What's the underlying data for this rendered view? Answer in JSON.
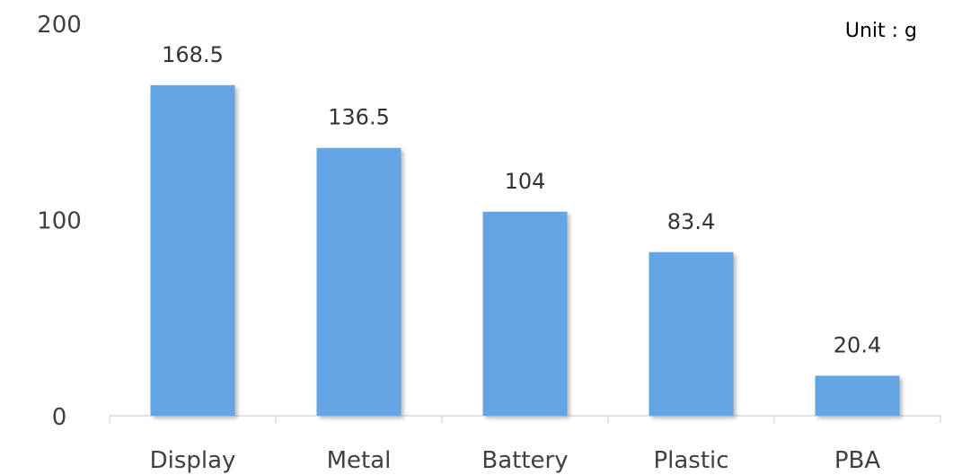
{
  "chart_data": {
    "type": "bar",
    "categories": [
      "Display",
      "Metal",
      "Battery",
      "Plastic",
      "PBA"
    ],
    "values": [
      168.5,
      136.5,
      104,
      83.4,
      20.4
    ],
    "value_labels": [
      "168.5",
      "136.5",
      "104",
      "83.4",
      "20.4"
    ],
    "unit_text": "Unit : g",
    "ylim": [
      0,
      200
    ],
    "yticks": [
      0,
      100,
      200
    ],
    "ytick_labels": [
      "0",
      "100",
      "200"
    ],
    "grid": false,
    "colors": {
      "bar": "#64A5E2",
      "bar_shadow": "#B9B9B9",
      "axis": "#D9D9D9",
      "text": "#404040"
    }
  }
}
